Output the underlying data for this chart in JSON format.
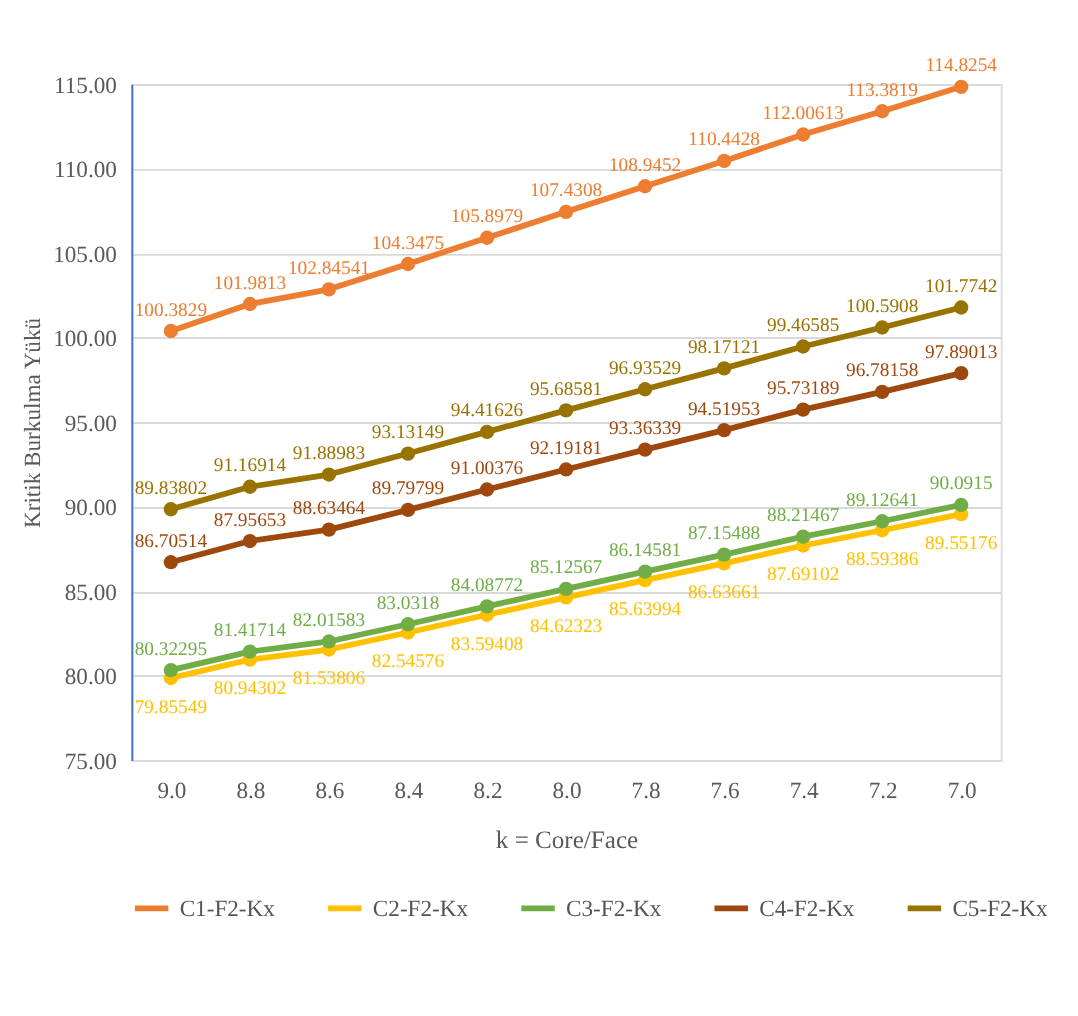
{
  "chart_data": {
    "type": "line",
    "xlabel": "k = Core/Face",
    "ylabel": "Kritik Burkulma Yükü",
    "categories": [
      "9.0",
      "8.8",
      "8.6",
      "8.4",
      "8.2",
      "8.0",
      "7.8",
      "7.6",
      "7.4",
      "7.2",
      "7.0"
    ],
    "ylim": [
      75,
      115
    ],
    "yticks": [
      {
        "value": 75,
        "label": "75.00"
      },
      {
        "value": 80,
        "label": "80.00"
      },
      {
        "value": 85,
        "label": "85.00"
      },
      {
        "value": 90,
        "label": "90.00"
      },
      {
        "value": 95,
        "label": "95.00"
      },
      {
        "value": 100,
        "label": "100.00"
      },
      {
        "value": 105,
        "label": "105.00"
      },
      {
        "value": 110,
        "label": "110.00"
      },
      {
        "value": 115,
        "label": "115.00"
      }
    ],
    "grid": "y",
    "legend": "bottom",
    "marker": "circle",
    "line_style": "solid",
    "data_labels": true,
    "series": [
      {
        "name": "C1-F2-Kx",
        "color": "#ed7d31",
        "values": [
          100.3829,
          101.9813,
          102.84541,
          104.3475,
          105.8979,
          107.4308,
          108.9452,
          110.4428,
          112.00613,
          113.3819,
          114.8254
        ]
      },
      {
        "name": "C2-F2-Kx",
        "color": "#ffc000",
        "values": [
          79.85549,
          80.94302,
          81.53806,
          82.54576,
          83.59408,
          84.62323,
          85.63994,
          86.63661,
          87.69102,
          88.59386,
          89.55176
        ]
      },
      {
        "name": "C3-F2-Kx",
        "color": "#70ad47",
        "values": [
          80.32295,
          81.41714,
          82.01583,
          83.0318,
          84.08772,
          85.12567,
          86.14581,
          87.15488,
          88.21467,
          89.12641,
          90.0915
        ]
      },
      {
        "name": "C4-F2-Kx",
        "color": "#9e480e",
        "values": [
          86.70514,
          87.95653,
          88.63464,
          89.79799,
          91.00376,
          92.19181,
          93.36339,
          94.51953,
          95.73189,
          96.78158,
          97.89013
        ]
      },
      {
        "name": "C5-F2-Kx",
        "color": "#997300",
        "values": [
          89.83802,
          91.16914,
          91.88983,
          93.13149,
          94.41626,
          95.68581,
          96.93529,
          98.17121,
          99.46585,
          100.5908,
          101.7742
        ]
      }
    ]
  }
}
